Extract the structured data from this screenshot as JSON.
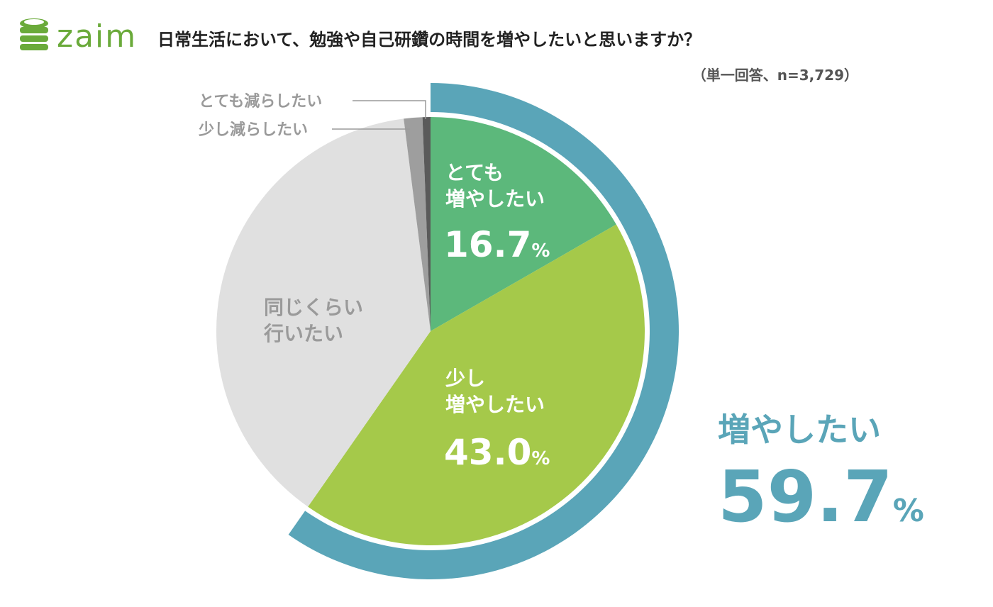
{
  "logo": {
    "text": "zaim"
  },
  "title": "日常生活において、勉強や自己研鑽の時間を増やしたいと思いますか？",
  "note": "（単一回答、n=3,729）",
  "chart_data": {
    "type": "pie",
    "title": "日常生活において、勉強や自己研鑽の時間を増やしたいと思いますか？",
    "slices": [
      {
        "label": "とても増やしたい",
        "value": 16.7,
        "color": "#5cb87b",
        "display_lines": [
          "とても",
          "増やしたい"
        ],
        "value_text": "16.7",
        "unit": "%"
      },
      {
        "label": "少し増やしたい",
        "value": 43.0,
        "color": "#a5c94a",
        "display_lines": [
          "少し",
          "増やしたい"
        ],
        "value_text": "43.0",
        "unit": "%"
      },
      {
        "label": "同じくらい行いたい",
        "value": 38.3,
        "color": "#e0e0e0",
        "display_lines": [
          "同じくらい",
          "行いたい"
        ]
      },
      {
        "label": "少し減らしたい",
        "value": 1.4,
        "color": "#9e9e9e"
      },
      {
        "label": "とても減らしたい",
        "value": 0.6,
        "color": "#5a5a5a"
      }
    ],
    "summary": {
      "label": "増やしたい",
      "value_text": "59.7",
      "unit": "%",
      "color": "#5aa5b8"
    }
  }
}
